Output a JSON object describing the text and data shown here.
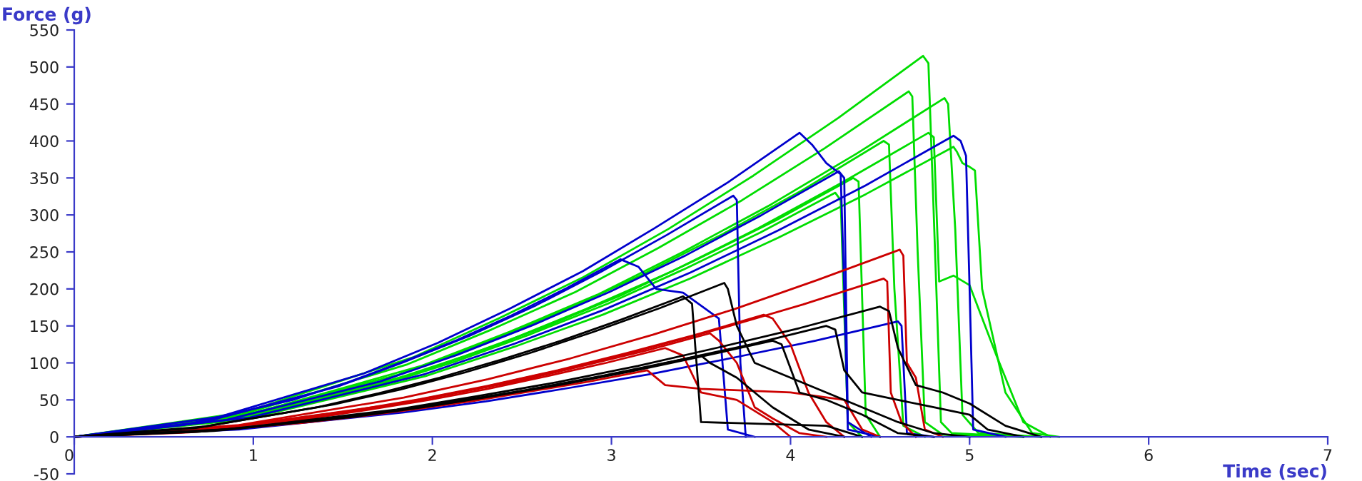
{
  "chart_data": {
    "type": "line",
    "xlabel": "Time (sec)",
    "ylabel": "Force (g)",
    "xlim": [
      0,
      7
    ],
    "ylim": [
      -50,
      550
    ],
    "xticks": [
      0,
      1,
      2,
      3,
      4,
      5,
      6,
      7
    ],
    "yticks": [
      -50,
      0,
      50,
      100,
      150,
      200,
      250,
      300,
      350,
      400,
      450,
      500,
      550
    ],
    "grid": false,
    "legend": false,
    "marker": "none",
    "line_style": "solid",
    "series": [
      {
        "color": "#00dd00",
        "x": [
          0,
          0.948,
          1.896,
          2.37,
          2.844,
          3.318,
          3.792,
          4.266,
          4.74,
          4.77,
          4.8,
          4.84,
          4.9,
          5.3
        ],
        "values": [
          0,
          33,
          108,
          160,
          216,
          281,
          353,
          431,
          515,
          505,
          300,
          20,
          5,
          0
        ]
      },
      {
        "color": "#00dd00",
        "x": [
          0,
          0.97,
          1.94,
          2.43,
          2.92,
          3.4,
          3.89,
          4.37,
          4.86,
          4.88,
          4.92,
          4.96,
          5.05,
          5.4
        ],
        "values": [
          0,
          30,
          96,
          142,
          192,
          250,
          314,
          383,
          458,
          450,
          280,
          30,
          5,
          0
        ]
      },
      {
        "color": "#00dd00",
        "x": [
          0,
          0.93,
          1.86,
          2.33,
          2.8,
          3.26,
          3.73,
          4.19,
          4.66,
          4.68,
          4.71,
          4.75,
          4.85,
          5.3
        ],
        "values": [
          0,
          30,
          98,
          145,
          196,
          255,
          320,
          390,
          467,
          460,
          250,
          20,
          3,
          0
        ]
      },
      {
        "color": "#00dd00",
        "x": [
          0,
          0.95,
          1.91,
          2.39,
          2.86,
          3.34,
          3.82,
          4.29,
          4.77,
          4.8,
          4.83,
          4.91,
          5.0,
          5.15,
          5.3,
          5.45
        ],
        "values": [
          0,
          27,
          86,
          127,
          173,
          224,
          282,
          344,
          411,
          405,
          210,
          218,
          205,
          110,
          20,
          0
        ]
      },
      {
        "color": "#00dd00",
        "x": [
          0,
          0.9,
          1.81,
          2.26,
          2.71,
          3.16,
          3.62,
          4.07,
          4.52,
          4.55,
          4.58,
          4.63,
          4.75
        ],
        "values": [
          0,
          26,
          84,
          124,
          168,
          218,
          274,
          334,
          400,
          395,
          200,
          15,
          0
        ]
      },
      {
        "color": "#00dd00",
        "x": [
          0,
          0.98,
          1.96,
          2.46,
          2.95,
          3.44,
          3.93,
          4.42,
          4.91,
          4.93,
          4.96,
          5.0,
          5.03,
          5.07,
          5.2,
          5.35,
          5.5
        ],
        "values": [
          0,
          25,
          82,
          122,
          165,
          214,
          269,
          328,
          392,
          385,
          370,
          365,
          360,
          200,
          60,
          5,
          0
        ]
      },
      {
        "color": "#00dd00",
        "x": [
          0,
          0.87,
          1.74,
          2.18,
          2.61,
          3.05,
          3.48,
          3.92,
          4.35,
          4.38,
          4.42,
          4.5
        ],
        "values": [
          0,
          23,
          74,
          109,
          147,
          191,
          240,
          293,
          350,
          345,
          30,
          0
        ]
      },
      {
        "color": "#00dd00",
        "x": [
          0,
          0.85,
          1.7,
          2.13,
          2.55,
          2.98,
          3.4,
          3.83,
          4.25,
          4.28,
          4.32,
          4.4
        ],
        "values": [
          0,
          21,
          69,
          102,
          139,
          180,
          226,
          276,
          330,
          320,
          20,
          0
        ]
      },
      {
        "color": "#0000cc",
        "x": [
          0,
          0.81,
          1.62,
          2.03,
          2.43,
          2.84,
          3.24,
          3.65,
          4.05,
          4.12,
          4.2,
          4.28,
          4.3,
          4.32,
          4.5
        ],
        "values": [
          0,
          27,
          86,
          127,
          173,
          224,
          282,
          344,
          411,
          395,
          370,
          355,
          200,
          10,
          0
        ]
      },
      {
        "color": "#0000cc",
        "x": [
          0,
          0.98,
          1.96,
          2.46,
          2.95,
          3.44,
          3.93,
          4.42,
          4.91,
          4.95,
          4.98,
          5.0,
          5.02,
          5.2
        ],
        "values": [
          0,
          26,
          85,
          126,
          171,
          222,
          279,
          340,
          407,
          400,
          380,
          200,
          10,
          0
        ]
      },
      {
        "color": "#0000cc",
        "x": [
          0,
          0.74,
          1.47,
          1.84,
          2.21,
          2.58,
          2.94,
          3.31,
          3.68,
          3.7,
          3.72,
          3.75
        ],
        "values": [
          0,
          21,
          68,
          101,
          137,
          178,
          223,
          273,
          326,
          320,
          100,
          0
        ]
      },
      {
        "color": "#0000cc",
        "x": [
          0,
          0.85,
          1.71,
          2.14,
          2.56,
          2.99,
          3.42,
          3.84,
          4.27,
          4.3,
          4.32,
          4.45
        ],
        "values": [
          0,
          23,
          75,
          111,
          151,
          196,
          246,
          300,
          359,
          350,
          20,
          0
        ]
      },
      {
        "color": "#0000cc",
        "x": [
          0,
          0.61,
          1.22,
          1.53,
          1.83,
          2.14,
          2.44,
          2.75,
          3.05,
          3.15,
          3.25,
          3.4,
          3.6,
          3.65,
          3.8
        ],
        "values": [
          0,
          16,
          50,
          74,
          101,
          131,
          164,
          201,
          240,
          230,
          200,
          195,
          160,
          10,
          0
        ]
      },
      {
        "color": "#0000cc",
        "x": [
          0,
          0.92,
          1.84,
          2.3,
          2.76,
          3.22,
          3.68,
          4.14,
          4.6,
          4.62,
          4.65,
          4.8
        ],
        "values": [
          0,
          10,
          33,
          48,
          66,
          85,
          107,
          130,
          156,
          150,
          5,
          0
        ]
      },
      {
        "color": "#cc0000",
        "x": [
          0,
          0.92,
          1.84,
          2.31,
          2.77,
          3.23,
          3.69,
          4.15,
          4.61,
          4.63,
          4.65,
          4.7,
          4.75,
          4.85
        ],
        "values": [
          0,
          16,
          53,
          78,
          106,
          138,
          173,
          212,
          253,
          245,
          100,
          80,
          10,
          0
        ]
      },
      {
        "color": "#cc0000",
        "x": [
          0,
          0.9,
          1.81,
          2.26,
          2.71,
          3.16,
          3.62,
          4.07,
          4.52,
          4.54,
          4.56,
          4.62,
          4.7
        ],
        "values": [
          0,
          14,
          45,
          66,
          90,
          117,
          147,
          179,
          214,
          210,
          60,
          20,
          0
        ]
      },
      {
        "color": "#cc0000",
        "x": [
          0,
          0.77,
          1.54,
          1.93,
          2.31,
          2.7,
          3.08,
          3.47,
          3.85,
          3.9,
          4.0,
          4.1,
          4.2,
          4.3
        ],
        "values": [
          0,
          11,
          35,
          51,
          69,
          90,
          113,
          138,
          165,
          160,
          125,
          60,
          20,
          0
        ]
      },
      {
        "color": "#cc0000",
        "x": [
          0,
          0.71,
          1.42,
          1.78,
          2.13,
          2.49,
          2.84,
          3.2,
          3.55,
          3.6,
          3.7,
          3.8,
          3.9,
          4.05,
          4.2
        ],
        "values": [
          0,
          9,
          29,
          43,
          59,
          76,
          96,
          117,
          140,
          130,
          100,
          40,
          25,
          5,
          0
        ]
      },
      {
        "color": "#cc0000",
        "x": [
          0,
          0.66,
          1.32,
          1.65,
          1.98,
          2.31,
          2.64,
          2.97,
          3.3,
          3.4,
          3.5,
          3.7,
          3.9,
          4.0
        ],
        "values": [
          0,
          8,
          25,
          37,
          50,
          65,
          82,
          100,
          120,
          110,
          60,
          50,
          20,
          0
        ]
      },
      {
        "color": "#cc0000",
        "x": [
          0,
          0.64,
          1.28,
          1.6,
          1.92,
          2.24,
          2.56,
          2.88,
          3.2,
          3.3,
          3.5,
          4.0,
          4.3,
          4.4,
          4.5
        ],
        "values": [
          0,
          6,
          19,
          28,
          38,
          49,
          62,
          75,
          90,
          70,
          65,
          60,
          50,
          10,
          0
        ]
      },
      {
        "color": "#000000",
        "x": [
          0,
          0.73,
          1.45,
          1.82,
          2.18,
          2.54,
          2.9,
          3.27,
          3.63,
          3.65,
          3.7,
          3.8,
          4.0,
          4.2,
          4.4,
          4.6,
          4.8,
          5.0
        ],
        "values": [
          0,
          14,
          44,
          64,
          87,
          113,
          142,
          174,
          208,
          200,
          150,
          100,
          80,
          60,
          40,
          20,
          5,
          0
        ]
      },
      {
        "color": "#000000",
        "x": [
          0,
          0.9,
          1.8,
          2.25,
          2.7,
          3.15,
          3.6,
          4.05,
          4.5,
          4.55,
          4.6,
          4.7,
          4.85,
          5.0,
          5.2,
          5.4
        ],
        "values": [
          0,
          11,
          37,
          55,
          74,
          96,
          121,
          147,
          176,
          170,
          120,
          70,
          60,
          45,
          15,
          0
        ]
      },
      {
        "color": "#000000",
        "x": [
          0,
          0.68,
          1.36,
          1.7,
          2.04,
          2.38,
          2.72,
          3.06,
          3.4,
          3.45,
          3.5,
          4.2,
          4.4
        ],
        "values": [
          0,
          12,
          40,
          59,
          80,
          104,
          130,
          159,
          190,
          180,
          20,
          15,
          0
        ]
      },
      {
        "color": "#000000",
        "x": [
          0,
          0.84,
          1.68,
          2.1,
          2.52,
          2.94,
          3.36,
          3.78,
          4.2,
          4.25,
          4.3,
          4.4,
          4.6,
          4.8,
          5.0,
          5.1,
          5.3
        ],
        "values": [
          0,
          10,
          32,
          47,
          63,
          82,
          103,
          125,
          150,
          145,
          90,
          60,
          50,
          40,
          30,
          10,
          0
        ]
      },
      {
        "color": "#000000",
        "x": [
          0,
          0.78,
          1.56,
          1.95,
          2.34,
          2.73,
          3.12,
          3.51,
          3.9,
          3.95,
          4.05,
          4.2,
          4.4,
          4.6,
          4.8
        ],
        "values": [
          0,
          8,
          27,
          40,
          55,
          71,
          89,
          109,
          130,
          125,
          60,
          50,
          30,
          5,
          0
        ]
      },
      {
        "color": "#000000",
        "x": [
          0,
          0.7,
          1.4,
          1.75,
          2.1,
          2.45,
          2.8,
          3.15,
          3.5,
          3.55,
          3.7,
          3.9,
          4.1,
          4.3
        ],
        "values": [
          0,
          7,
          23,
          34,
          46,
          60,
          75,
          92,
          110,
          100,
          80,
          40,
          10,
          0
        ]
      }
    ]
  }
}
